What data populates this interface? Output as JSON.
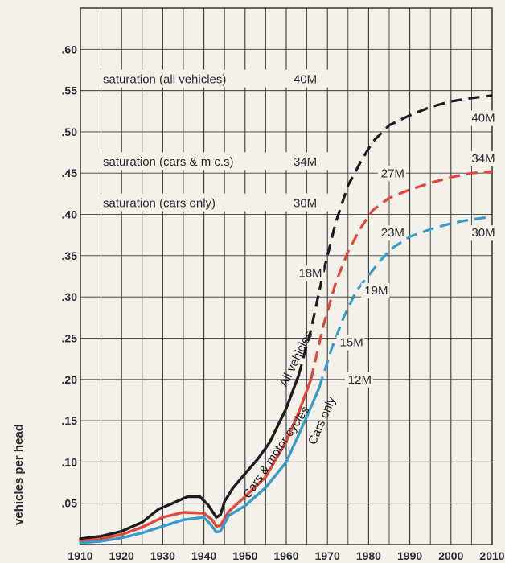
{
  "chart_data": {
    "type": "line",
    "xlabel": "",
    "ylabel": "vehicles per head",
    "xlim": [
      1910,
      2010
    ],
    "ylim": [
      0,
      0.65
    ],
    "x_ticks": [
      "1910",
      "1920",
      "1930",
      "1940",
      "1950",
      "1960",
      "1970",
      "1980",
      "1990",
      "2000",
      "2010"
    ],
    "y_ticks": [
      ".05",
      ".10",
      ".15",
      ".20",
      ".25",
      ".30",
      ".35",
      ".40",
      ".45",
      ".50",
      ".55",
      ".60"
    ],
    "y_tick_values": [
      0.05,
      0.1,
      0.15,
      0.2,
      0.25,
      0.3,
      0.35,
      0.4,
      0.45,
      0.5,
      0.55,
      0.6
    ],
    "grid": true,
    "saturation_lines": [
      {
        "label": "saturation (all vehicles)",
        "count": "40M",
        "y": 0.55
      },
      {
        "label": "saturation (cars & m c.s)",
        "count": "34M",
        "y": 0.45
      },
      {
        "label": "saturation (cars only)",
        "count": "30M",
        "y": 0.4
      }
    ],
    "series": [
      {
        "name": "All vehicles",
        "color": "#1c1c1c",
        "actual": {
          "x": [
            1910,
            1915,
            1920,
            1925,
            1929,
            1932,
            1936,
            1939,
            1941,
            1943,
            1944,
            1945,
            1947,
            1950,
            1953,
            1956,
            1960,
            1963
          ],
          "y": [
            0.007,
            0.01,
            0.016,
            0.027,
            0.043,
            0.049,
            0.058,
            0.058,
            0.048,
            0.033,
            0.036,
            0.052,
            0.068,
            0.086,
            0.103,
            0.124,
            0.165,
            0.205
          ]
        },
        "projected": {
          "x": [
            1963,
            1966,
            1969,
            1972,
            1975,
            1978,
            1981,
            1985,
            1990,
            1995,
            2000,
            2005,
            2010
          ],
          "y": [
            0.205,
            0.26,
            0.33,
            0.39,
            0.435,
            0.463,
            0.488,
            0.508,
            0.52,
            0.53,
            0.537,
            0.541,
            0.544
          ]
        }
      },
      {
        "name": "Cars & motor cycles",
        "color": "#e2473c",
        "actual": {
          "x": [
            1910,
            1915,
            1920,
            1925,
            1930,
            1935,
            1940,
            1942,
            1943,
            1944,
            1946,
            1950,
            1955,
            1960,
            1963,
            1966
          ],
          "y": [
            0.004,
            0.007,
            0.012,
            0.021,
            0.033,
            0.039,
            0.038,
            0.03,
            0.022,
            0.023,
            0.04,
            0.058,
            0.082,
            0.125,
            0.16,
            0.2
          ]
        },
        "projected": {
          "x": [
            1966,
            1969,
            1972,
            1975,
            1978,
            1981,
            1985,
            1990,
            1995,
            2000,
            2005,
            2010
          ],
          "y": [
            0.2,
            0.265,
            0.317,
            0.355,
            0.383,
            0.405,
            0.42,
            0.43,
            0.438,
            0.445,
            0.45,
            0.452
          ]
        }
      },
      {
        "name": "Cars only",
        "color": "#3a9ccc",
        "actual": {
          "x": [
            1910,
            1915,
            1920,
            1925,
            1930,
            1935,
            1940,
            1942,
            1943,
            1944,
            1946,
            1950,
            1955,
            1960,
            1965,
            1968
          ],
          "y": [
            0.002,
            0.004,
            0.008,
            0.014,
            0.022,
            0.03,
            0.033,
            0.022,
            0.015,
            0.016,
            0.035,
            0.047,
            0.069,
            0.1,
            0.155,
            0.19
          ]
        },
        "projected": {
          "x": [
            1968,
            1971,
            1974,
            1977,
            1980,
            1983,
            1986,
            1990,
            1995,
            2000,
            2005,
            2010
          ],
          "y": [
            0.19,
            0.237,
            0.276,
            0.307,
            0.326,
            0.345,
            0.36,
            0.373,
            0.382,
            0.389,
            0.394,
            0.397
          ]
        }
      }
    ],
    "annotations": [
      {
        "text": "40M",
        "x": 2005,
        "y": 0.512
      },
      {
        "text": "34M",
        "x": 2005,
        "y": 0.463
      },
      {
        "text": "30M",
        "x": 2005,
        "y": 0.373
      },
      {
        "text": "27M",
        "x": 1983,
        "y": 0.445
      },
      {
        "text": "23M",
        "x": 1983,
        "y": 0.373
      },
      {
        "text": "19M",
        "x": 1979,
        "y": 0.303
      },
      {
        "text": "18M",
        "x": 1963,
        "y": 0.324
      },
      {
        "text": "15M",
        "x": 1973,
        "y": 0.24
      },
      {
        "text": "12M",
        "x": 1975,
        "y": 0.195
      }
    ],
    "curve_labels": [
      {
        "text": "All vehicles",
        "x": 1960,
        "y": 0.19,
        "angle": -64
      },
      {
        "text": "Cars & motor cycles",
        "x": 1951,
        "y": 0.055,
        "angle": -56
      },
      {
        "text": "Cars only",
        "x": 1967,
        "y": 0.12,
        "angle": -66
      }
    ]
  }
}
